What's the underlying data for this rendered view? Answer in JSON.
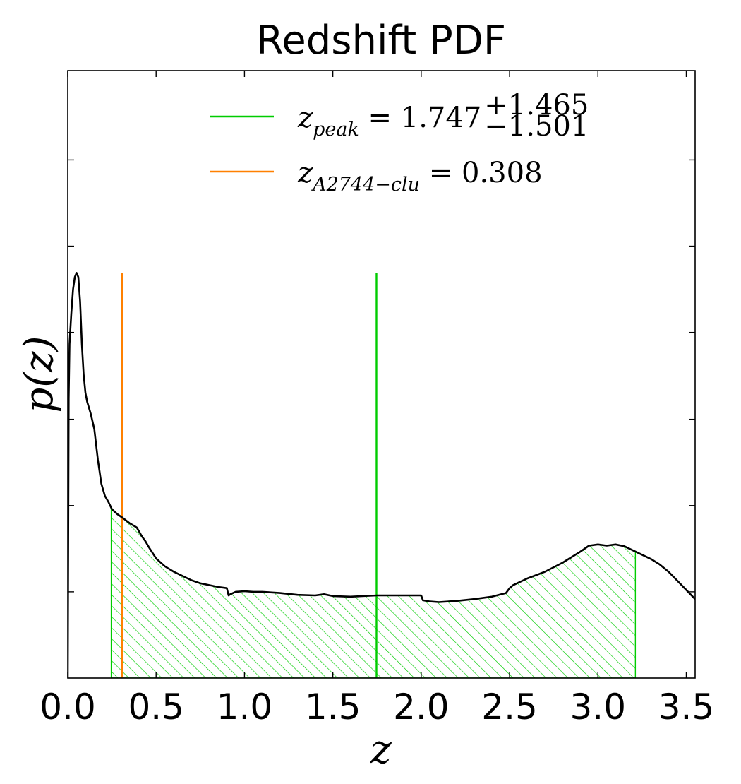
{
  "chart_data": {
    "type": "line",
    "title": "Redshift PDF",
    "xlabel": "z",
    "ylabel": "p(z)",
    "xlim": [
      0.0,
      3.55
    ],
    "ylim": [
      0.0,
      1.0
    ],
    "y_tick_labels_shown": false,
    "grid": false,
    "x_ticks": [
      0.0,
      0.5,
      1.0,
      1.5,
      2.0,
      2.5,
      3.0,
      3.5
    ],
    "x_tick_labels": [
      "0.0",
      "0.5",
      "1.0",
      "1.5",
      "2.0",
      "2.5",
      "3.0",
      "3.5"
    ],
    "y_ticks": [
      0.142,
      0.284,
      0.426,
      0.569,
      0.711,
      0.853
    ],
    "series": [
      {
        "name": "p(z)",
        "color": "#000000",
        "x": [
          0.0,
          0.005,
          0.01,
          0.02,
          0.03,
          0.04,
          0.05,
          0.06,
          0.07,
          0.08,
          0.09,
          0.1,
          0.11,
          0.13,
          0.15,
          0.17,
          0.19,
          0.21,
          0.23,
          0.25,
          0.28,
          0.31,
          0.35,
          0.39,
          0.42,
          0.44,
          0.46,
          0.5,
          0.55,
          0.6,
          0.7,
          0.75,
          0.8,
          0.85,
          0.9,
          0.91,
          0.92,
          0.95,
          1.0,
          1.05,
          1.1,
          1.2,
          1.3,
          1.4,
          1.45,
          1.5,
          1.6,
          1.75,
          1.9,
          2.0,
          2.01,
          2.05,
          2.1,
          2.2,
          2.3,
          2.4,
          2.48,
          2.5,
          2.52,
          2.6,
          2.7,
          2.8,
          2.9,
          2.95,
          3.0,
          3.05,
          3.1,
          3.15,
          3.2,
          3.25,
          3.3,
          3.35,
          3.4,
          3.45,
          3.5,
          3.55
        ],
        "y": [
          0.0,
          0.46,
          0.55,
          0.6,
          0.64,
          0.66,
          0.667,
          0.66,
          0.62,
          0.55,
          0.5,
          0.47,
          0.455,
          0.435,
          0.41,
          0.36,
          0.32,
          0.3,
          0.29,
          0.278,
          0.27,
          0.264,
          0.255,
          0.248,
          0.233,
          0.225,
          0.215,
          0.197,
          0.184,
          0.175,
          0.161,
          0.156,
          0.153,
          0.15,
          0.148,
          0.136,
          0.138,
          0.142,
          0.143,
          0.142,
          0.142,
          0.14,
          0.137,
          0.136,
          0.138,
          0.135,
          0.134,
          0.136,
          0.136,
          0.136,
          0.128,
          0.126,
          0.125,
          0.127,
          0.13,
          0.134,
          0.14,
          0.148,
          0.153,
          0.164,
          0.175,
          0.19,
          0.208,
          0.218,
          0.22,
          0.218,
          0.22,
          0.217,
          0.21,
          0.203,
          0.196,
          0.187,
          0.175,
          0.16,
          0.145,
          0.13
        ]
      }
    ],
    "shaded_interval": {
      "x_min": 0.246,
      "x_max": 3.212,
      "color": "#00cc00",
      "hatch": "\\\\"
    },
    "vertical_lines": [
      {
        "x": 1.747,
        "y_top": 0.667,
        "color": "#00cc00"
      },
      {
        "x": 0.308,
        "y_top": 0.667,
        "color": "#ff8000"
      }
    ],
    "legend": {
      "placement": "upper-center",
      "entries": [
        {
          "color": "#00cc00",
          "var": "z",
          "sub": "peak",
          "equals": "=",
          "value": "1.747",
          "sup": "+1.465",
          "subscript_err": "−1.501"
        },
        {
          "color": "#ff8000",
          "var": "z",
          "sub": "A2744−clu",
          "equals": "=",
          "value": "0.308"
        }
      ]
    }
  }
}
